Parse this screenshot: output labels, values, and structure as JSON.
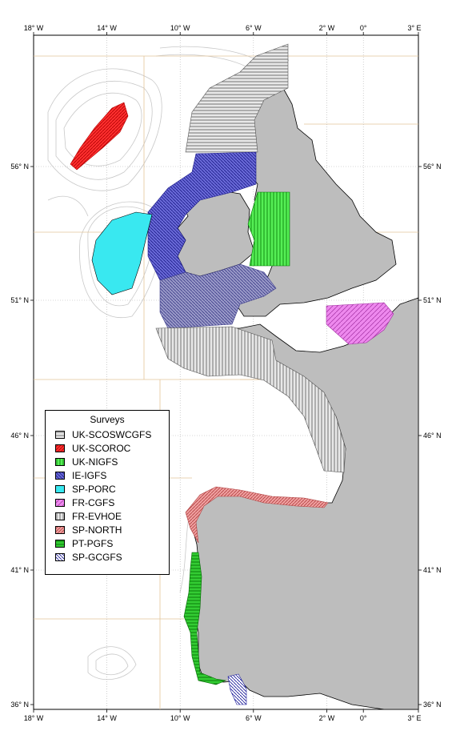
{
  "map": {
    "extent": {
      "lon": [
        -18,
        3
      ],
      "lat": [
        36,
        59
      ]
    },
    "colors": {
      "land": "#bdbdbd",
      "sea": "#ffffff",
      "bathymetry": "#c8c8c8",
      "ices_grid": "#e3c49a",
      "graticule": "#b0b0b0"
    },
    "lon_ticks": [
      {
        "value": -18,
        "label": "18° W"
      },
      {
        "value": -14,
        "label": "14° W"
      },
      {
        "value": -10,
        "label": "10° W"
      },
      {
        "value": -6,
        "label": "6° W"
      },
      {
        "value": -2,
        "label": "2° W"
      },
      {
        "value": 0,
        "label": "0°"
      },
      {
        "value": 3,
        "label": "3° E"
      }
    ],
    "lat_ticks": [
      {
        "value": 56,
        "label": "56° N"
      },
      {
        "value": 51,
        "label": "51° N"
      },
      {
        "value": 46,
        "label": "46° N"
      },
      {
        "value": 41,
        "label": "41° N"
      },
      {
        "value": 36,
        "label": "36° N"
      }
    ]
  },
  "legend": {
    "title": "Surveys",
    "items": [
      {
        "label": "UK-SCOSWCGFS",
        "color": "#555555",
        "pattern": "hlines"
      },
      {
        "label": "UK-SCOROC",
        "color": "#ff0000",
        "pattern": "diag"
      },
      {
        "label": "UK-NIGFS",
        "color": "#00cc00",
        "pattern": "vlines"
      },
      {
        "label": "IE-IGFS",
        "color": "#2a2aaa",
        "pattern": "antidiag"
      },
      {
        "label": "SP-PORC",
        "color": "#00e5ee",
        "pattern": "solid"
      },
      {
        "label": "FR-CGFS",
        "color": "#ee66ee",
        "pattern": "grid"
      },
      {
        "label": "FR-EVHOE",
        "color": "#555555",
        "pattern": "vlines"
      },
      {
        "label": "SP-NORTH",
        "color": "#ee6666",
        "pattern": "diag"
      },
      {
        "label": "PT-PGFS",
        "color": "#00bb00",
        "pattern": "hlines"
      },
      {
        "label": "SP-GCGFS",
        "color": "#1a1a99",
        "pattern": "antidiag"
      }
    ]
  }
}
